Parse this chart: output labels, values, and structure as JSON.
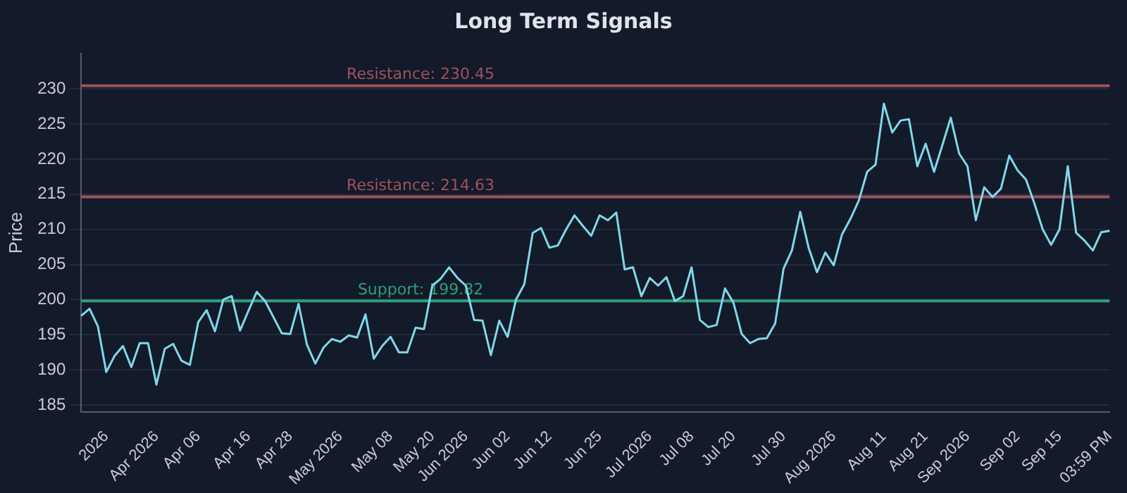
{
  "chart_data": {
    "type": "line",
    "title": "Long Term Signals",
    "ylabel": "Price",
    "categories": [
      null,
      null,
      null,
      "2026",
      null,
      null,
      null,
      null,
      null,
      "Apr 2026",
      null,
      null,
      null,
      null,
      "Apr 06",
      null,
      null,
      null,
      null,
      null,
      "Apr 16",
      null,
      null,
      null,
      null,
      "Apr 28",
      null,
      null,
      null,
      null,
      null,
      "May 2026",
      null,
      null,
      null,
      null,
      null,
      "May 08",
      null,
      null,
      null,
      null,
      "May 20",
      null,
      null,
      null,
      "Jun 2026",
      null,
      null,
      null,
      null,
      "Jun 02",
      null,
      null,
      null,
      null,
      "Jun 12",
      null,
      null,
      null,
      null,
      null,
      "Jun 25",
      null,
      null,
      null,
      null,
      null,
      "Jul 2026",
      null,
      null,
      null,
      null,
      "Jul 08",
      null,
      null,
      null,
      null,
      "Jul 20",
      null,
      null,
      null,
      null,
      null,
      "Jul 30",
      null,
      null,
      null,
      null,
      null,
      "Aug 2026",
      null,
      null,
      null,
      null,
      null,
      "Aug 11",
      null,
      null,
      null,
      null,
      "Aug 21",
      null,
      null,
      null,
      null,
      "Sep 2026",
      null,
      null,
      null,
      null,
      null,
      "Sep 02",
      null,
      null,
      null,
      null,
      "Sep 15",
      null,
      null,
      null,
      null,
      null,
      "03:59 PM"
    ],
    "series": [
      {
        "color": "#7fd8e8",
        "values": [
          197.7,
          198.7,
          196.2,
          189.7,
          192,
          193.4,
          190.4,
          193.8,
          193.8,
          187.9,
          193,
          193.7,
          191.3,
          190.7,
          196.8,
          198.5,
          195.5,
          200,
          200.5,
          195.6,
          198.4,
          201.1,
          199.8,
          197.5,
          195.2,
          195.1,
          199.4,
          193.6,
          190.9,
          193.2,
          194.4,
          194,
          194.9,
          194.6,
          197.9,
          191.6,
          193.4,
          194.7,
          192.5,
          192.5,
          196,
          195.8,
          202,
          203,
          204.6,
          203.1,
          202,
          197.1,
          197,
          192.1,
          197,
          194.7,
          200,
          202.2,
          209.5,
          210.2,
          207.4,
          207.7,
          210,
          212,
          210.5,
          209.1,
          212,
          211.3,
          212.4,
          204.3,
          204.6,
          200.5,
          203.1,
          202,
          203.2,
          199.8,
          200.5,
          204.6,
          197.1,
          196.1,
          196.4,
          201.6,
          199.6,
          195.1,
          193.8,
          194.4,
          194.5,
          196.6,
          204.4,
          207,
          212.5,
          207.4,
          203.9,
          206.7,
          204.9,
          209.3,
          211.5,
          214.1,
          218.2,
          219.2,
          227.9,
          223.8,
          225.5,
          225.7,
          219,
          222.2,
          218.2,
          222,
          225.9,
          220.8,
          219,
          211.3,
          216,
          214.6,
          215.8,
          220.5,
          218.4,
          217.1,
          213.7,
          210,
          207.8,
          210,
          219,
          209.5,
          208.4,
          207,
          209.6,
          209.8
        ]
      }
    ],
    "ylim": [
      184,
      235
    ],
    "yticks": [
      185,
      190,
      195,
      200,
      205,
      210,
      215,
      220,
      225,
      230
    ],
    "grid": "y",
    "legend": false,
    "marker": "none",
    "line_style": "solid",
    "ref_lines": [
      {
        "axis": "y",
        "value": 230.45,
        "label": "Resistance: 230.45",
        "color": "#a0525c"
      },
      {
        "axis": "y",
        "value": 214.63,
        "label": "Resistance: 214.63",
        "color": "#a0525c"
      },
      {
        "axis": "y",
        "value": 199.82,
        "label": "Support: 199.82",
        "color": "#2e9e7a"
      }
    ]
  }
}
